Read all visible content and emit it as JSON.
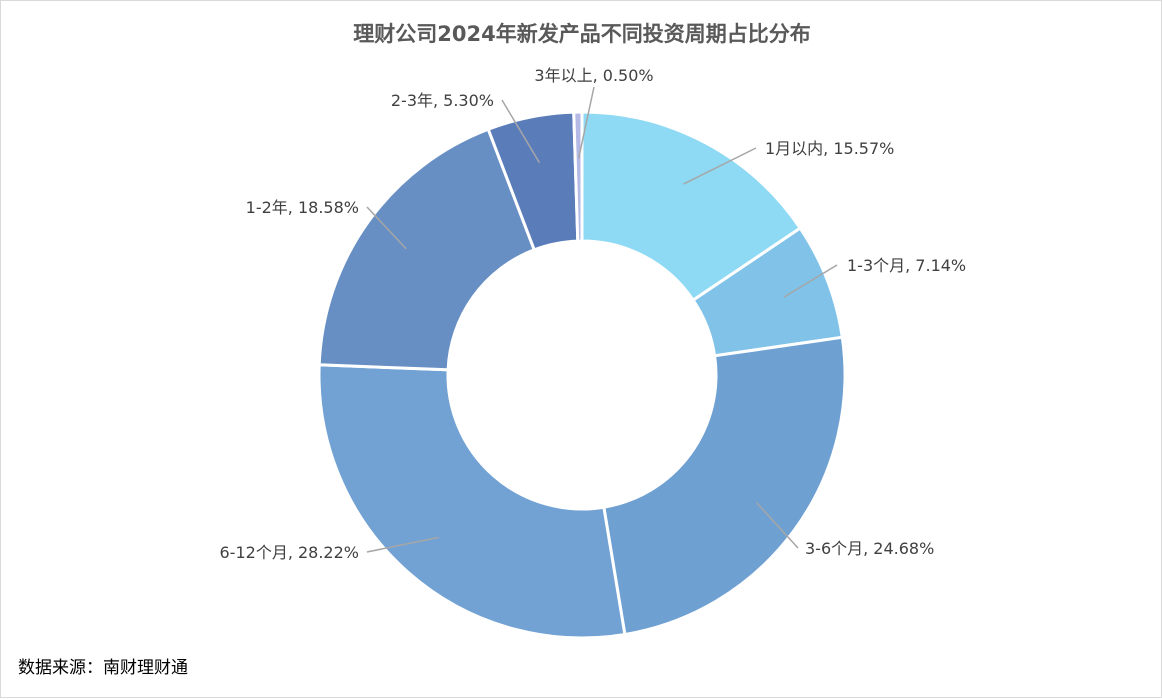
{
  "chart_data": {
    "type": "pie",
    "variant": "donut",
    "title": "理财公司2024年新发产品不同投资周期占比分布",
    "source": "数据来源：南财理财通",
    "slices": [
      {
        "label": "1月以内",
        "value": 15.57,
        "display": "1月以内, 15.57%",
        "color": "#8ED9F3"
      },
      {
        "label": "1-3个月",
        "value": 7.14,
        "display": "1-3个月, 7.14%",
        "color": "#80C2E8"
      },
      {
        "label": "3-6个月",
        "value": 24.68,
        "display": "3-6个月, 24.68%",
        "color": "#6FA0D2"
      },
      {
        "label": "6-12个月",
        "value": 28.22,
        "display": "6-12个月, 28.22%",
        "color": "#72A2D3"
      },
      {
        "label": "1-2年",
        "value": 18.58,
        "display": "1-2年, 18.58%",
        "color": "#678FC3"
      },
      {
        "label": "2-3年",
        "value": 5.3,
        "display": "2-3年, 5.30%",
        "color": "#5A7DBA"
      },
      {
        "label": "3年以上",
        "value": 0.5,
        "display": "3年以上, 0.50%",
        "color": "#B4B9E6"
      }
    ]
  }
}
